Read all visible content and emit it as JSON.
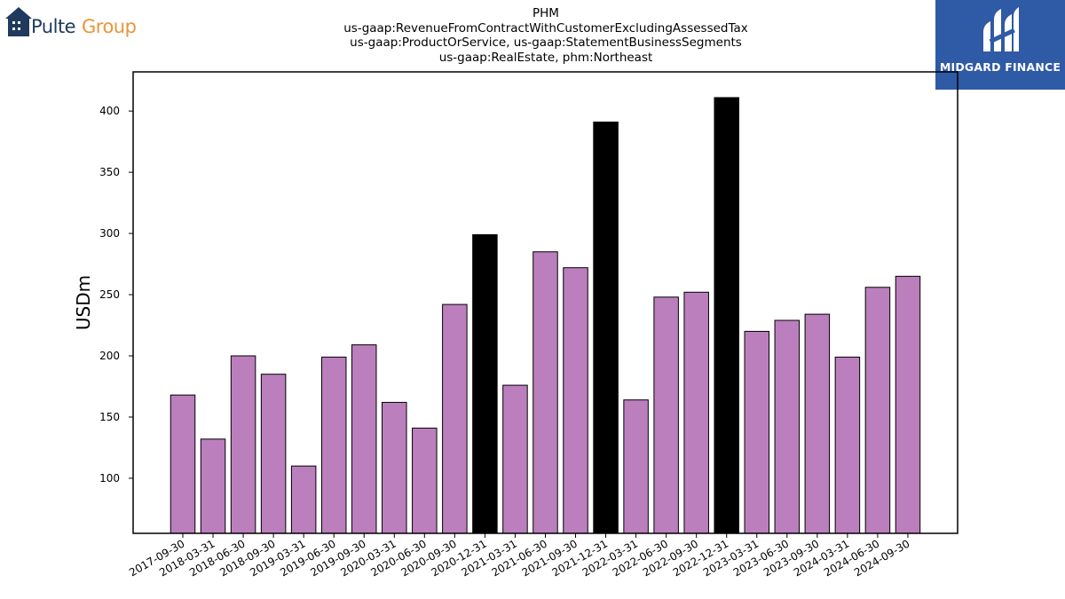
{
  "header": {
    "title_lines": [
      "PHM",
      "us-gaap:RevenueFromContractWithCustomerExcludingAssessedTax",
      "us-gaap:ProductOrService, us-gaap:StatementBusinessSegments",
      "us-gaap:RealEstate, phm:Northeast"
    ]
  },
  "logos": {
    "left": {
      "word1": "Pulte",
      "word2": "Group",
      "icon": "house-icon",
      "color1": "#1f3a5c",
      "color2": "#e8963a"
    },
    "right": {
      "text": "MIDGARD FINANCE",
      "icon": "midgard-mark-icon",
      "background": "#2f5aa6"
    }
  },
  "chart_data": {
    "type": "bar",
    "title": "PHM",
    "xlabel": "",
    "ylabel": "USDm",
    "ylim": [
      55,
      432
    ],
    "yticks": [
      100,
      150,
      200,
      250,
      300,
      350,
      400
    ],
    "grid": false,
    "colors": {
      "normal": "#bb7fbd",
      "highlight": "#000000",
      "edge": "#000000"
    },
    "categories": [
      "2017-09-30",
      "2018-03-31",
      "2018-06-30",
      "2018-09-30",
      "2019-03-31",
      "2019-06-30",
      "2019-09-30",
      "2020-03-31",
      "2020-06-30",
      "2020-09-30",
      "2020-12-31",
      "2021-03-31",
      "2021-06-30",
      "2021-09-30",
      "2021-12-31",
      "2022-03-31",
      "2022-06-30",
      "2022-09-30",
      "2022-12-31",
      "2023-03-31",
      "2023-06-30",
      "2023-09-30",
      "2024-03-31",
      "2024-06-30",
      "2024-09-30"
    ],
    "values": [
      168,
      132,
      200,
      185,
      110,
      199,
      209,
      162,
      141,
      242,
      299,
      176,
      285,
      272,
      391,
      164,
      248,
      252,
      411,
      220,
      229,
      234,
      199,
      256,
      265
    ],
    "highlight": [
      false,
      false,
      false,
      false,
      false,
      false,
      false,
      false,
      false,
      false,
      true,
      false,
      false,
      false,
      true,
      false,
      false,
      false,
      true,
      false,
      false,
      false,
      false,
      false,
      false
    ]
  }
}
